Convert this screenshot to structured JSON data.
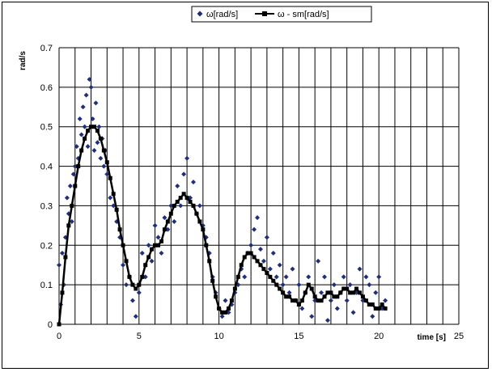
{
  "chart_data": {
    "type": "scatter",
    "xlabel": "time [s]",
    "ylabel": "rad/s",
    "xlim": [
      0,
      25
    ],
    "ylim": [
      0,
      0.7
    ],
    "xticks": [
      0,
      5,
      10,
      15,
      20,
      25
    ],
    "yticks": [
      0,
      0.1,
      0.2,
      0.3,
      0.4,
      0.5,
      0.6,
      0.7
    ],
    "x_minor_step": 1,
    "grid": true,
    "legend_position": "top-right",
    "colors": {
      "raw": "#1f2f7a",
      "smooth": "#000000",
      "grid": "#000000"
    },
    "series": [
      {
        "name": "ω[rad/s]",
        "style": "markers",
        "marker": "diamond",
        "note_density": "raw samples scatter around the smoothed curve",
        "x": [
          0.0,
          0.1,
          0.2,
          0.3,
          0.4,
          0.5,
          0.6,
          0.7,
          0.8,
          0.9,
          1.0,
          1.1,
          1.2,
          1.3,
          1.4,
          1.5,
          1.6,
          1.7,
          1.8,
          1.9,
          2.0,
          2.1,
          2.2,
          2.3,
          2.4,
          2.5,
          2.6,
          2.7,
          2.8,
          2.9,
          3.0,
          3.2,
          3.4,
          3.6,
          3.8,
          4.0,
          4.2,
          4.4,
          4.6,
          4.8,
          5.0,
          5.2,
          5.4,
          5.6,
          5.8,
          6.0,
          6.2,
          6.4,
          6.6,
          6.8,
          7.0,
          7.2,
          7.4,
          7.6,
          7.8,
          8.0,
          8.2,
          8.4,
          8.6,
          8.8,
          9.0,
          9.2,
          9.4,
          9.6,
          9.8,
          10.0,
          10.2,
          10.4,
          10.6,
          10.8,
          11.0,
          11.2,
          11.4,
          11.6,
          11.8,
          12.0,
          12.2,
          12.4,
          12.6,
          12.8,
          13.0,
          13.2,
          13.4,
          13.6,
          13.8,
          14.0,
          14.2,
          14.4,
          14.6,
          14.8,
          15.0,
          15.2,
          15.4,
          15.6,
          15.8,
          16.0,
          16.2,
          16.4,
          16.6,
          16.8,
          17.0,
          17.2,
          17.4,
          17.6,
          17.8,
          18.0,
          18.2,
          18.4,
          18.6,
          18.8,
          19.0,
          19.2,
          19.4,
          19.6,
          19.8,
          20.0,
          20.2,
          20.4
        ],
        "y": [
          0.15,
          0.05,
          0.18,
          0.1,
          0.22,
          0.32,
          0.28,
          0.35,
          0.26,
          0.38,
          0.4,
          0.45,
          0.42,
          0.52,
          0.48,
          0.55,
          0.5,
          0.58,
          0.45,
          0.62,
          0.6,
          0.52,
          0.44,
          0.56,
          0.46,
          0.5,
          0.42,
          0.47,
          0.4,
          0.44,
          0.38,
          0.32,
          0.3,
          0.26,
          0.22,
          0.15,
          0.1,
          0.12,
          0.06,
          0.02,
          0.08,
          0.18,
          0.12,
          0.2,
          0.16,
          0.25,
          0.22,
          0.18,
          0.27,
          0.24,
          0.3,
          0.26,
          0.35,
          0.3,
          0.38,
          0.42,
          0.32,
          0.36,
          0.28,
          0.3,
          0.25,
          0.22,
          0.18,
          0.12,
          0.08,
          0.04,
          0.02,
          0.06,
          0.03,
          0.05,
          0.08,
          0.1,
          0.14,
          0.12,
          0.18,
          0.2,
          0.24,
          0.27,
          0.19,
          0.16,
          0.22,
          0.14,
          0.18,
          0.12,
          0.15,
          0.1,
          0.12,
          0.08,
          0.14,
          0.06,
          0.1,
          0.04,
          0.08,
          0.12,
          0.02,
          0.06,
          0.16,
          0.08,
          0.12,
          0.01,
          0.06,
          0.1,
          0.04,
          0.08,
          0.12,
          0.06,
          0.1,
          0.03,
          0.08,
          0.14,
          0.06,
          0.12,
          0.1,
          0.02,
          0.08,
          0.12,
          0.04,
          0.06
        ]
      },
      {
        "name": "ω - sm[rad/s]",
        "style": "line+markers",
        "marker": "square",
        "x": [
          0.0,
          0.2,
          0.4,
          0.6,
          0.8,
          1.0,
          1.2,
          1.4,
          1.6,
          1.8,
          2.0,
          2.2,
          2.4,
          2.6,
          2.8,
          3.0,
          3.2,
          3.4,
          3.6,
          3.8,
          4.0,
          4.2,
          4.4,
          4.6,
          4.8,
          5.0,
          5.2,
          5.4,
          5.6,
          5.8,
          6.0,
          6.2,
          6.4,
          6.6,
          6.8,
          7.0,
          7.2,
          7.4,
          7.6,
          7.8,
          8.0,
          8.2,
          8.4,
          8.6,
          8.8,
          9.0,
          9.2,
          9.4,
          9.6,
          9.8,
          10.0,
          10.2,
          10.4,
          10.6,
          10.8,
          11.0,
          11.2,
          11.4,
          11.6,
          11.8,
          12.0,
          12.2,
          12.4,
          12.6,
          12.8,
          13.0,
          13.2,
          13.4,
          13.6,
          13.8,
          14.0,
          14.2,
          14.4,
          14.6,
          14.8,
          15.0,
          15.2,
          15.4,
          15.6,
          15.8,
          16.0,
          16.2,
          16.4,
          16.6,
          16.8,
          17.0,
          17.2,
          17.4,
          17.6,
          17.8,
          18.0,
          18.2,
          18.4,
          18.6,
          18.8,
          19.0,
          19.2,
          19.4,
          19.6,
          19.8,
          20.0,
          20.2,
          20.4
        ],
        "y": [
          0.0,
          0.08,
          0.17,
          0.25,
          0.3,
          0.35,
          0.4,
          0.44,
          0.47,
          0.49,
          0.5,
          0.5,
          0.49,
          0.47,
          0.44,
          0.41,
          0.37,
          0.33,
          0.29,
          0.24,
          0.2,
          0.16,
          0.12,
          0.1,
          0.09,
          0.1,
          0.12,
          0.15,
          0.17,
          0.19,
          0.2,
          0.2,
          0.21,
          0.24,
          0.26,
          0.28,
          0.3,
          0.31,
          0.32,
          0.33,
          0.32,
          0.31,
          0.3,
          0.28,
          0.26,
          0.24,
          0.2,
          0.16,
          0.11,
          0.07,
          0.04,
          0.03,
          0.03,
          0.04,
          0.06,
          0.09,
          0.12,
          0.15,
          0.17,
          0.18,
          0.18,
          0.17,
          0.16,
          0.15,
          0.14,
          0.13,
          0.12,
          0.11,
          0.1,
          0.09,
          0.08,
          0.07,
          0.07,
          0.06,
          0.06,
          0.05,
          0.06,
          0.08,
          0.1,
          0.09,
          0.07,
          0.06,
          0.06,
          0.07,
          0.08,
          0.08,
          0.07,
          0.07,
          0.08,
          0.09,
          0.09,
          0.08,
          0.08,
          0.09,
          0.08,
          0.07,
          0.06,
          0.05,
          0.05,
          0.04,
          0.04,
          0.05,
          0.04
        ]
      }
    ]
  }
}
